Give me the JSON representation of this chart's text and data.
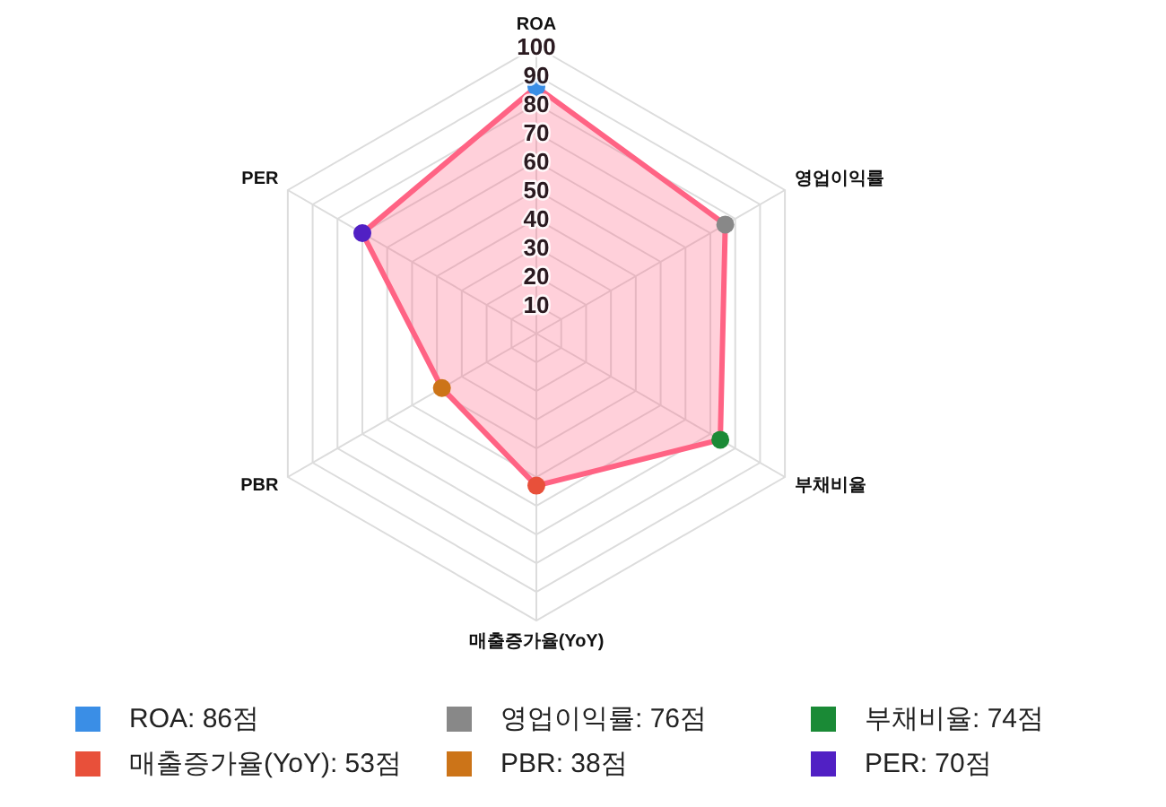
{
  "chart_data": {
    "type": "radar",
    "categories": [
      "ROA",
      "영업이익률",
      "부채비율",
      "매출증가율(YoY)",
      "PBR",
      "PER"
    ],
    "series": [
      {
        "color": "#ff6384",
        "values": [
          86,
          76,
          74,
          53,
          38,
          70
        ],
        "colors": [
          "#3a8ee6",
          "#888888",
          "#1a8a36",
          "#e8503a",
          "#cc7418",
          "#5120c4"
        ]
      }
    ],
    "annotations": [
      "ROA: 86점",
      "영업이익률: 76점",
      "부채비율: 74점",
      "매출증가율(YoY): 53점",
      "PBR: 38점",
      "PER: 70점"
    ],
    "ylim": [
      0,
      100
    ],
    "yticks": [
      10,
      20,
      30,
      40,
      50,
      60,
      70,
      80,
      90,
      100
    ],
    "grid": true,
    "marker": "circle",
    "line_style": "solid"
  }
}
